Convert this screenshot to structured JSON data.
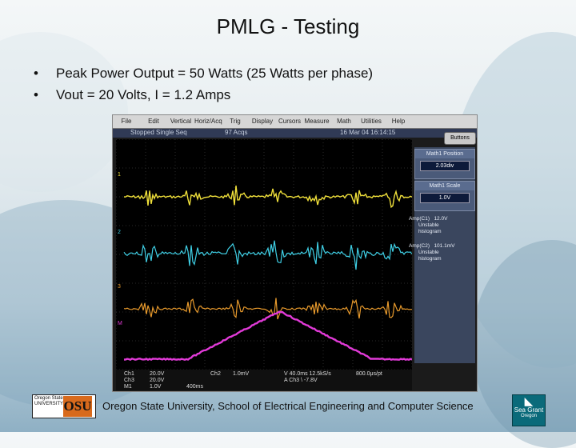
{
  "slide": {
    "title": "PMLG - Testing",
    "bullets": [
      "Peak Power Output = 50 Watts (25 Watts per phase)",
      "Vout = 20 Volts, I = 1.2 Amps"
    ],
    "bullet_glyph": "•",
    "footer": "Oregon State University, School of Electrical Engineering and Computer Science"
  },
  "scope": {
    "menu": [
      "File",
      "Edit",
      "Vertical",
      "Horiz/Acq",
      "Trig",
      "Display",
      "Cursors",
      "Measure",
      "Math",
      "Utilities",
      "Help"
    ],
    "status": {
      "left": "Stopped Single Seq",
      "mid": "97 Acqs",
      "right": "16 Mar 04 16:14:15"
    },
    "buttons_label": "Buttons",
    "panels": [
      {
        "header": "Math1 Position",
        "value": "2.03div"
      },
      {
        "header": "Math1 Scale",
        "value": "1.0V"
      }
    ],
    "measurements": [
      {
        "line1": "Amp(C1)",
        "value": "12.0V",
        "line2": "Unstable",
        "line3": "histogram"
      },
      {
        "line1": "Amp(C2)",
        "value": "101.1mV",
        "line2": "Unstable",
        "line3": "histogram"
      }
    ],
    "readout": {
      "ch1": "Ch1",
      "ch1_val": "20.0V",
      "ch2": "Ch2",
      "ch2_val": "1.0mV",
      "ch3": "Ch3",
      "ch3_val": "20.0V",
      "m1": "M1",
      "m1_val": "1.0V",
      "timebase": "400ms",
      "horiz": "V 40.0ms 12.5kS/s",
      "horiz2": "A Ch3 \\ -7.8V",
      "trig": "800.0μs/pt"
    },
    "trace_colors": {
      "ch1": "#f0e03a",
      "ch2": "#3fd0e6",
      "ch3": "#e89a2c",
      "math": "#e23ad8"
    },
    "channel_markers": [
      "1",
      "2",
      "3",
      "M"
    ]
  },
  "logos": {
    "osu_text": "Oregon State",
    "osu_sub": "UNIVERSITY",
    "osu_mark": "OSU",
    "seagrant_text": "Sea Grant",
    "seagrant_sub": "Oregon"
  }
}
